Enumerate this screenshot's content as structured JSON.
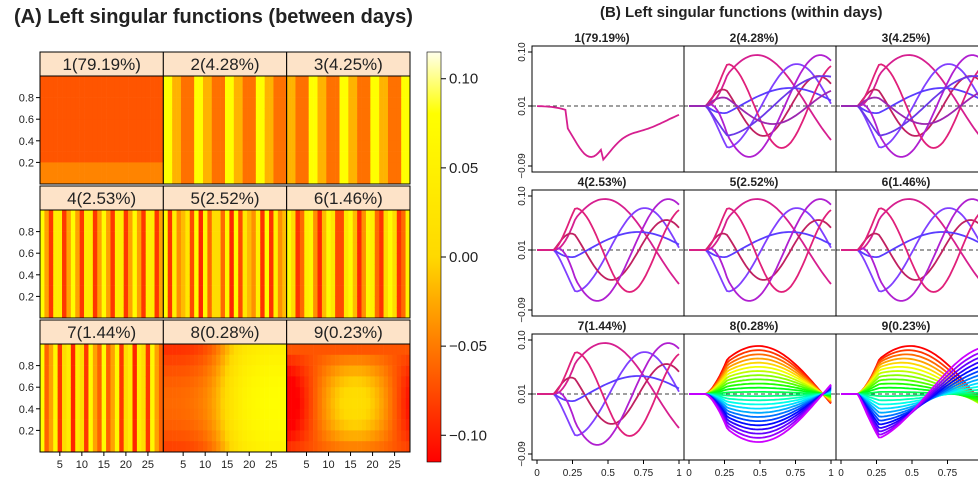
{
  "panel_a": {
    "title": "(A) Left singular functions (between days)",
    "colorbar": {
      "ticks": [
        {
          "value": 0.1,
          "label": "0.10"
        },
        {
          "value": 0.05,
          "label": "0.05"
        },
        {
          "value": 0.0,
          "label": "0.00"
        },
        {
          "value": -0.05,
          "label": "−0.05"
        },
        {
          "value": -0.1,
          "label": "−0.10"
        }
      ],
      "range": [
        -0.115,
        0.115
      ],
      "colors": [
        "#ff0000",
        "#ff8000",
        "#ffff00",
        "#ffffe0"
      ]
    }
  },
  "panel_b": {
    "title": "(B) Left singular functions (within days)",
    "y_ticks": [
      {
        "value": 0.1,
        "label": "0.10"
      },
      {
        "value": 0.01,
        "label": "0.01"
      },
      {
        "value": -0.09,
        "label": "−0.09"
      }
    ],
    "x_ticks": [
      {
        "value": 0,
        "label": "0"
      },
      {
        "value": 0.25,
        "label": "0.25"
      },
      {
        "value": 0.5,
        "label": "0.5"
      },
      {
        "value": 0.75,
        "label": "0.75"
      },
      {
        "value": 1,
        "label": "1"
      }
    ]
  },
  "chart_data": [
    {
      "type": "heatmap",
      "title": "(A) Left singular functions (between days)",
      "x_ticks": [
        5,
        10,
        15,
        20,
        25
      ],
      "y_ticks": [
        0.2,
        0.4,
        0.6,
        0.8
      ],
      "y_tick_labels": [
        "0.2",
        "0.4",
        "0.6",
        "0.8"
      ],
      "panels": [
        {
          "label": "1(79.19%)",
          "pattern": "constant"
        },
        {
          "label": "2(4.28%)",
          "pattern": "weekly-stripes"
        },
        {
          "label": "3(4.25%)",
          "pattern": "weekly-stripes"
        },
        {
          "label": "4(2.53%)",
          "pattern": "fine-stripes"
        },
        {
          "label": "5(2.52%)",
          "pattern": "fine-stripes"
        },
        {
          "label": "6(1.46%)",
          "pattern": "fine-stripes"
        },
        {
          "label": "7(1.44%)",
          "pattern": "fine-stripes"
        },
        {
          "label": "8(0.28%)",
          "pattern": "smooth"
        },
        {
          "label": "9(0.23%)",
          "pattern": "smooth"
        }
      ],
      "legend": "colorbar, right"
    },
    {
      "type": "line",
      "title": "(B) Left singular functions (within days)",
      "x_range": [
        0,
        1
      ],
      "y_range": [
        -0.1,
        0.11
      ],
      "y_ticks": [
        0.1,
        0.01,
        -0.09
      ],
      "x_ticks": [
        0,
        0.25,
        0.5,
        0.75,
        1
      ],
      "reference_line": 0.01,
      "panels": [
        {
          "label": "1(79.19%)",
          "n_curves": 1
        },
        {
          "label": "2(4.28%)",
          "n_curves": 8
        },
        {
          "label": "3(4.25%)",
          "n_curves": 8
        },
        {
          "label": "4(2.53%)",
          "n_curves": 6
        },
        {
          "label": "5(2.52%)",
          "n_curves": 6
        },
        {
          "label": "6(1.46%)",
          "n_curves": 6
        },
        {
          "label": "7(1.44%)",
          "n_curves": 6
        },
        {
          "label": "8(0.28%)",
          "n_curves": 24
        },
        {
          "label": "9(0.23%)",
          "n_curves": 24
        }
      ]
    }
  ]
}
